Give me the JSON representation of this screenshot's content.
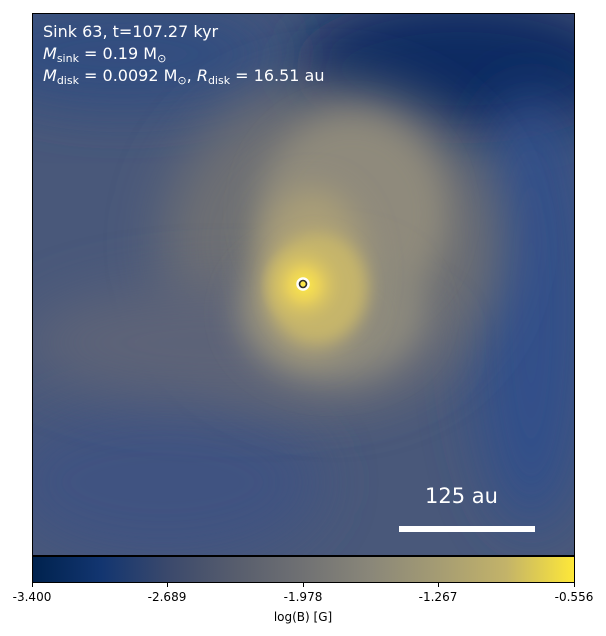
{
  "info": {
    "sink_label": "Sink 63, t=107.27 kyr",
    "msink_var": "M",
    "msink_sub": "sink",
    "msink_value": "= 0.19 M",
    "msink_unit_sub": "⊙",
    "mdisk_var": "M",
    "mdisk_sub": "disk",
    "mdisk_value": "= 0.0092 M",
    "mdisk_unit_sub": "⊙",
    "rdisk_separator": ", ",
    "rdisk_var": "R",
    "rdisk_sub": "disk",
    "rdisk_value": "= 16.51 au"
  },
  "scale_bar": {
    "label": "125 au"
  },
  "colorbar": {
    "ticks": [
      "-3.400",
      "-2.689",
      "-1.978",
      "-1.267",
      "-0.556"
    ],
    "label": "log(B) [G]",
    "colors": [
      "#00224e",
      "#123570",
      "#3b496c",
      "#575d6d",
      "#707173",
      "#8a8779",
      "#a59c73",
      "#c3b369",
      "#fee838"
    ]
  }
}
